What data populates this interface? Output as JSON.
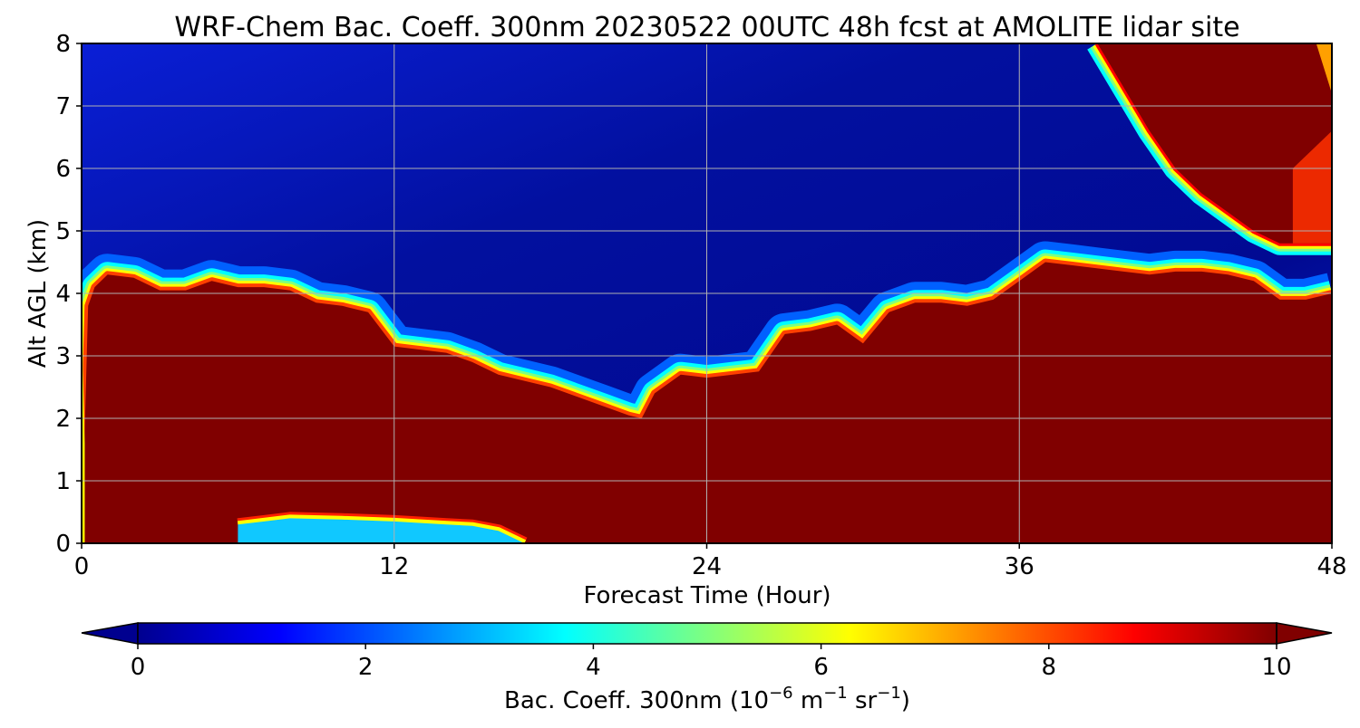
{
  "chart_data": {
    "type": "heatmap",
    "title": "WRF-Chem Bac. Coeff. 300nm  20230522 00UTC 48h fcst at AMOLITE lidar site",
    "xlabel": "Forecast Time (Hour)",
    "ylabel": "Alt AGL (km)",
    "xlim": [
      0,
      48
    ],
    "ylim": [
      0,
      8
    ],
    "xticks": [
      "0",
      "12",
      "24",
      "36",
      "48"
    ],
    "yticks": [
      "0",
      "1",
      "2",
      "3",
      "4",
      "5",
      "6",
      "7",
      "8"
    ],
    "grid": true,
    "colormap": "jet",
    "colorbar": {
      "label_main": "Bac. Coeff. 300nm  (10",
      "exp1": "−6",
      "label_mid1": " m",
      "exp2": "−1",
      "label_mid2": " sr",
      "exp3": "−1",
      "label_end": ")",
      "range": [
        0,
        10
      ],
      "ticks": [
        "0",
        "2",
        "4",
        "6",
        "8",
        "10"
      ],
      "extend": "both",
      "under_color": "#00008f",
      "over_color": "#800000"
    },
    "layer_top_km": {
      "hours": [
        0,
        0.25,
        0.5,
        1,
        2,
        3,
        4,
        5,
        6,
        7,
        8,
        9,
        10,
        11,
        12,
        13,
        14,
        15,
        16,
        17,
        18,
        19,
        20,
        21,
        21.5,
        22,
        23,
        24,
        25,
        26,
        27,
        28,
        29,
        30,
        31,
        32,
        33,
        34,
        35,
        36,
        37,
        38,
        39,
        40,
        41,
        42,
        43,
        44,
        45,
        46,
        47,
        48
      ],
      "values": [
        0,
        3.8,
        4.1,
        4.3,
        4.25,
        4.05,
        4.05,
        4.2,
        4.1,
        4.1,
        4.05,
        3.85,
        3.8,
        3.7,
        3.15,
        3.1,
        3.05,
        2.9,
        2.7,
        2.6,
        2.5,
        2.35,
        2.2,
        2.05,
        2.0,
        2.4,
        2.7,
        2.65,
        2.7,
        2.75,
        3.35,
        3.4,
        3.5,
        3.2,
        3.7,
        3.85,
        3.85,
        3.8,
        3.9,
        4.2,
        4.5,
        4.45,
        4.4,
        4.35,
        4.3,
        4.35,
        4.35,
        4.3,
        4.2,
        3.9,
        3.9,
        4.0
      ]
    },
    "surface_pocket": {
      "hours": [
        6,
        7,
        8,
        10,
        12,
        14,
        15,
        16,
        17
      ],
      "top_km": [
        0.3,
        0.35,
        0.4,
        0.38,
        0.35,
        0.3,
        0.28,
        0.2,
        0.0
      ]
    },
    "upper_plume_boundary_km": {
      "hours": [
        39,
        40,
        41,
        42,
        43,
        44,
        45,
        46,
        47,
        48
      ],
      "values": [
        8.0,
        7.3,
        6.6,
        6.0,
        5.6,
        5.3,
        5.0,
        4.8,
        4.8,
        4.8
      ]
    }
  }
}
